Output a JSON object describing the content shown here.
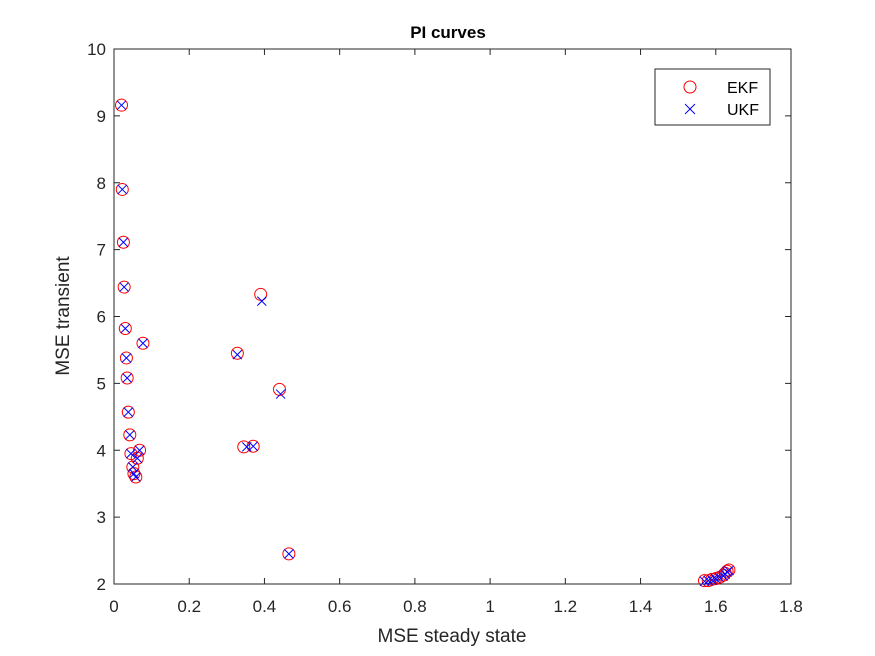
{
  "chart_data": {
    "type": "scatter",
    "title": "PI curves",
    "xlabel": "MSE steady state",
    "ylabel": "MSE transient",
    "xlim": [
      0,
      1.8
    ],
    "ylim": [
      2,
      10
    ],
    "xticks": [
      0,
      0.2,
      0.4,
      0.6,
      0.8,
      1,
      1.2,
      1.4,
      1.6,
      1.8
    ],
    "xtick_labels": [
      "0",
      "0.2",
      "0.4",
      "0.6",
      "0.8",
      "1",
      "1.2",
      "1.4",
      "1.6",
      "1.8"
    ],
    "yticks": [
      2,
      3,
      4,
      5,
      6,
      7,
      8,
      9,
      10
    ],
    "ytick_labels": [
      "2",
      "3",
      "4",
      "5",
      "6",
      "7",
      "8",
      "9",
      "10"
    ],
    "grid": false,
    "legend_position": "top-right",
    "series": [
      {
        "name": "EKF",
        "marker": "circle",
        "color": "#ff0000",
        "points": [
          [
            0.02,
            9.16
          ],
          [
            0.022,
            7.9
          ],
          [
            0.025,
            7.11
          ],
          [
            0.027,
            6.44
          ],
          [
            0.03,
            5.82
          ],
          [
            0.033,
            5.38
          ],
          [
            0.035,
            5.08
          ],
          [
            0.038,
            4.57
          ],
          [
            0.042,
            4.23
          ],
          [
            0.045,
            3.95
          ],
          [
            0.05,
            3.75
          ],
          [
            0.053,
            3.65
          ],
          [
            0.058,
            3.6
          ],
          [
            0.062,
            3.88
          ],
          [
            0.068,
            4.0
          ],
          [
            0.077,
            5.6
          ],
          [
            0.328,
            5.45
          ],
          [
            0.345,
            4.05
          ],
          [
            0.37,
            4.06
          ],
          [
            0.39,
            6.33
          ],
          [
            0.44,
            4.91
          ],
          [
            0.465,
            2.45
          ],
          [
            1.57,
            2.05
          ],
          [
            1.58,
            2.05
          ],
          [
            1.59,
            2.07
          ],
          [
            1.6,
            2.08
          ],
          [
            1.61,
            2.1
          ],
          [
            1.62,
            2.13
          ],
          [
            1.625,
            2.16
          ],
          [
            1.63,
            2.19
          ],
          [
            1.635,
            2.21
          ]
        ]
      },
      {
        "name": "UKF",
        "marker": "x",
        "color": "#0000ff",
        "points": [
          [
            0.02,
            9.16
          ],
          [
            0.022,
            7.9
          ],
          [
            0.025,
            7.11
          ],
          [
            0.027,
            6.44
          ],
          [
            0.03,
            5.82
          ],
          [
            0.033,
            5.38
          ],
          [
            0.035,
            5.08
          ],
          [
            0.038,
            4.57
          ],
          [
            0.042,
            4.23
          ],
          [
            0.045,
            3.95
          ],
          [
            0.05,
            3.75
          ],
          [
            0.053,
            3.65
          ],
          [
            0.058,
            3.6
          ],
          [
            0.062,
            3.88
          ],
          [
            0.068,
            4.0
          ],
          [
            0.077,
            5.6
          ],
          [
            0.328,
            5.43
          ],
          [
            0.353,
            4.05
          ],
          [
            0.37,
            4.06
          ],
          [
            0.393,
            6.23
          ],
          [
            0.443,
            4.84
          ],
          [
            0.465,
            2.45
          ],
          [
            1.57,
            2.04
          ],
          [
            1.58,
            2.05
          ],
          [
            1.59,
            2.06
          ],
          [
            1.6,
            2.08
          ],
          [
            1.61,
            2.1
          ],
          [
            1.62,
            2.12
          ],
          [
            1.625,
            2.15
          ],
          [
            1.63,
            2.18
          ],
          [
            1.635,
            2.2
          ]
        ]
      }
    ]
  }
}
